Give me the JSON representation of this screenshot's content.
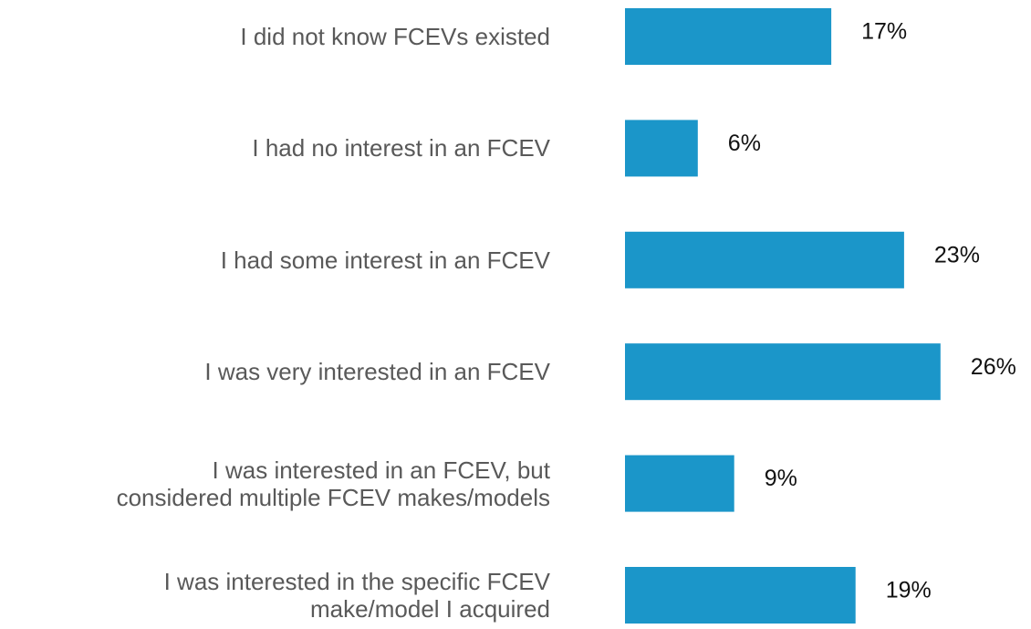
{
  "chart_data": {
    "type": "barh",
    "categories": [
      "I did not know FCEVs existed",
      "I had no interest in an FCEV",
      "I had some interest in an FCEV",
      "I was very interested in an FCEV",
      "I was interested in an FCEV, but\nconsidered multiple FCEV makes/models",
      "I was interested in the specific FCEV\nmake/model I acquired"
    ],
    "values": [
      17,
      6,
      23,
      26,
      9,
      19
    ],
    "value_labels": [
      "17%",
      "6%",
      "23%",
      "26%",
      "9%",
      "19%"
    ],
    "color": "#1b96c9"
  }
}
